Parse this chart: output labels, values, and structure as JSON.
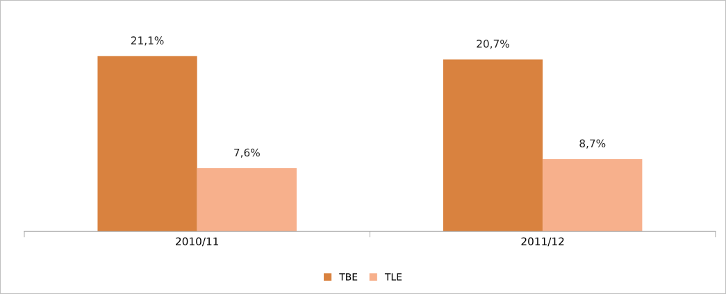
{
  "chart_data": {
    "type": "bar",
    "categories": [
      "2010/11",
      "2011/12"
    ],
    "series": [
      {
        "name": "TBE",
        "color": "#d9823f",
        "values": [
          21.1,
          20.7
        ],
        "value_labels": [
          "21,1%",
          "20,7%"
        ]
      },
      {
        "name": "TLE",
        "color": "#f7b08c",
        "values": [
          7.6,
          8.7
        ],
        "value_labels": [
          "7,6%",
          "8,7%"
        ]
      }
    ],
    "tick_labels": "x",
    "grid": false,
    "legend": "bottom"
  }
}
